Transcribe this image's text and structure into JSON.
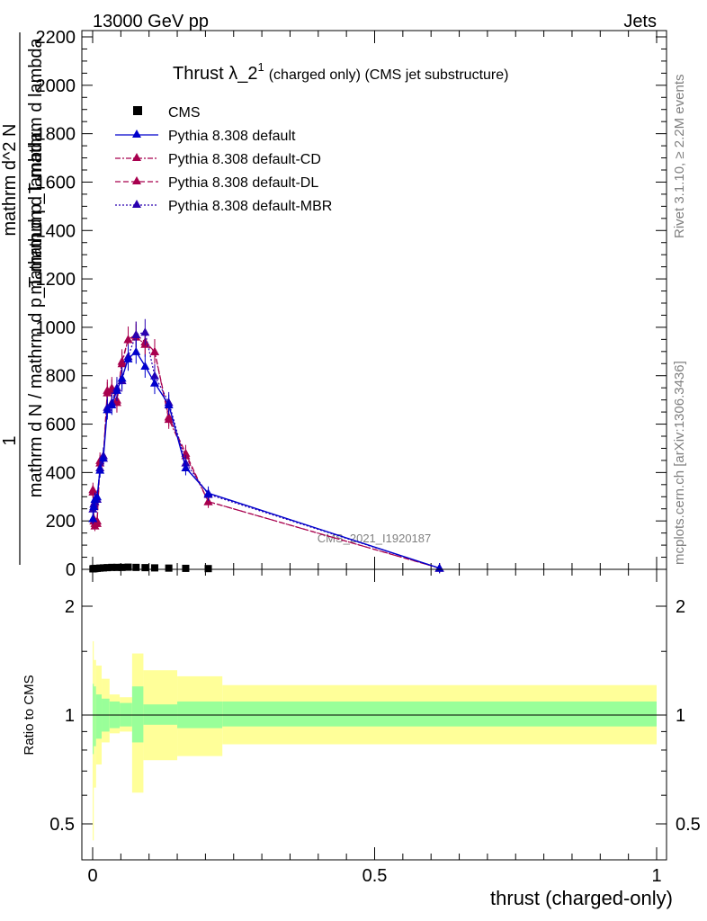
{
  "header": {
    "left": "13000 GeV pp",
    "right": "Jets"
  },
  "side_labels": {
    "rivet": "Rivet 3.1.10, ≥ 2.2M events",
    "mcplots": "mcplots.cern.ch [arXiv:1306.3436]"
  },
  "chart_data": [
    {
      "type": "line",
      "title": "Thrust λ_2^1 (charged only) (CMS jet substructure)",
      "title_main": "Thrust λ_2",
      "title_sup": "1",
      "title_rest": "(charged only) (CMS jet substructure)",
      "watermark": "CMS_2021_I1920187",
      "xlabel": "thrust (charged-only)",
      "ylabel_top": "1",
      "ylabel_bottom": "mathrm d N / mathrm d p_T mathrm d lambda",
      "ylabel_num": "mathrm d^2 N",
      "ylabel_den": "mathrm d p_T mathrm d lambda",
      "xlim": [
        -0.02,
        1.0
      ],
      "ylim": [
        0,
        2250
      ],
      "x_ticks": [
        0,
        0.5,
        1
      ],
      "x_tick_labels": [
        "0",
        "0.5",
        "1"
      ],
      "y_ticks": [
        0,
        200,
        400,
        600,
        800,
        1000,
        1200,
        1400,
        1600,
        1800,
        2000,
        2200
      ],
      "y_tick_labels": [
        "0",
        "200",
        "400",
        "600",
        "800",
        "1000",
        "1200",
        "1400",
        "1600",
        "1800",
        "2000",
        "2200"
      ],
      "legend_position": "top-left",
      "series": [
        {
          "name": "CMS",
          "color": "#000000",
          "marker": "square",
          "x": [
            0.0005,
            0.002,
            0.004,
            0.008,
            0.013,
            0.019,
            0.026,
            0.034,
            0.043,
            0.052,
            0.063,
            0.077,
            0.093,
            0.11,
            0.135,
            0.165,
            0.205,
            0.615
          ],
          "y": [
            2,
            3,
            3,
            4,
            5,
            6,
            7,
            8,
            8,
            8,
            9,
            8,
            7,
            6,
            5,
            4,
            3,
            0
          ]
        },
        {
          "name": "Pythia 8.308 default",
          "color": "#0000cc",
          "dash": "",
          "x": [
            0.0005,
            0.002,
            0.004,
            0.008,
            0.013,
            0.019,
            0.026,
            0.034,
            0.043,
            0.052,
            0.063,
            0.077,
            0.093,
            0.11,
            0.135,
            0.165,
            0.205,
            0.615
          ],
          "y": [
            210,
            260,
            290,
            300,
            410,
            460,
            660,
            680,
            740,
            790,
            870,
            900,
            840,
            770,
            680,
            420,
            315,
            5
          ]
        },
        {
          "name": "Pythia 8.308 default-CD",
          "color": "#a8004e",
          "dash": "6,2,2,2",
          "x": [
            0.0005,
            0.002,
            0.004,
            0.008,
            0.013,
            0.019,
            0.026,
            0.034,
            0.043,
            0.052,
            0.063,
            0.077,
            0.093,
            0.11,
            0.135,
            0.165,
            0.205,
            0.615
          ],
          "y": [
            320,
            200,
            180,
            190,
            450,
            460,
            730,
            740,
            690,
            850,
            950,
            960,
            930,
            900,
            620,
            470,
            280,
            5
          ]
        },
        {
          "name": "Pythia 8.308 default-DL",
          "color": "#a8004e",
          "dash": "6,3",
          "x": [
            0.0005,
            0.002,
            0.004,
            0.008,
            0.013,
            0.019,
            0.026,
            0.034,
            0.043,
            0.052,
            0.063,
            0.077,
            0.093,
            0.11,
            0.135,
            0.165,
            0.205,
            0.615
          ],
          "y": [
            330,
            210,
            190,
            200,
            440,
            470,
            740,
            750,
            700,
            860,
            950,
            970,
            940,
            900,
            630,
            480,
            280,
            5
          ]
        },
        {
          "name": "Pythia 8.308 default-MBR",
          "color": "#2a00b0",
          "dash": "2,2",
          "x": [
            0.0005,
            0.002,
            0.004,
            0.008,
            0.013,
            0.019,
            0.026,
            0.034,
            0.043,
            0.052,
            0.063,
            0.077,
            0.093,
            0.11,
            0.135,
            0.165,
            0.205,
            0.615
          ],
          "y": [
            250,
            270,
            280,
            290,
            420,
            470,
            670,
            690,
            750,
            780,
            880,
            970,
            980,
            800,
            690,
            440,
            310,
            5
          ]
        }
      ]
    },
    {
      "type": "area",
      "ylabel": "Ratio to CMS",
      "xlim": [
        -0.02,
        1.0
      ],
      "ylim": [
        0.4,
        2.3
      ],
      "y_scale": "log",
      "y_ticks": [
        0.5,
        1,
        2
      ],
      "y_tick_labels": [
        "0.5",
        "1",
        "2"
      ],
      "reference_line": 1,
      "colors": {
        "inner_band": "#99ff99",
        "outer_band": "#ffff99"
      },
      "bands": [
        {
          "x0": 0.0,
          "x1": 0.002,
          "inner": [
            0.78,
            1.22
          ],
          "outer": [
            0.45,
            1.6
          ]
        },
        {
          "x0": 0.002,
          "x1": 0.006,
          "inner": [
            0.82,
            1.2
          ],
          "outer": [
            0.63,
            1.42
          ]
        },
        {
          "x0": 0.006,
          "x1": 0.016,
          "inner": [
            0.86,
            1.14
          ],
          "outer": [
            0.73,
            1.37
          ]
        },
        {
          "x0": 0.016,
          "x1": 0.03,
          "inner": [
            0.9,
            1.11
          ],
          "outer": [
            0.84,
            1.26
          ]
        },
        {
          "x0": 0.03,
          "x1": 0.048,
          "inner": [
            0.92,
            1.09
          ],
          "outer": [
            0.89,
            1.14
          ]
        },
        {
          "x0": 0.048,
          "x1": 0.07,
          "inner": [
            0.93,
            1.08
          ],
          "outer": [
            0.9,
            1.12
          ]
        },
        {
          "x0": 0.07,
          "x1": 0.09,
          "inner": [
            0.84,
            1.2
          ],
          "outer": [
            0.61,
            1.48
          ]
        },
        {
          "x0": 0.09,
          "x1": 0.15,
          "inner": [
            0.94,
            1.07
          ],
          "outer": [
            0.75,
            1.33
          ]
        },
        {
          "x0": 0.15,
          "x1": 0.23,
          "inner": [
            0.92,
            1.09
          ],
          "outer": [
            0.77,
            1.28
          ]
        },
        {
          "x0": 0.23,
          "x1": 1.0,
          "inner": [
            0.93,
            1.09
          ],
          "outer": [
            0.83,
            1.21
          ]
        }
      ]
    }
  ],
  "legend_marker_labels": [
    "CMS"
  ]
}
